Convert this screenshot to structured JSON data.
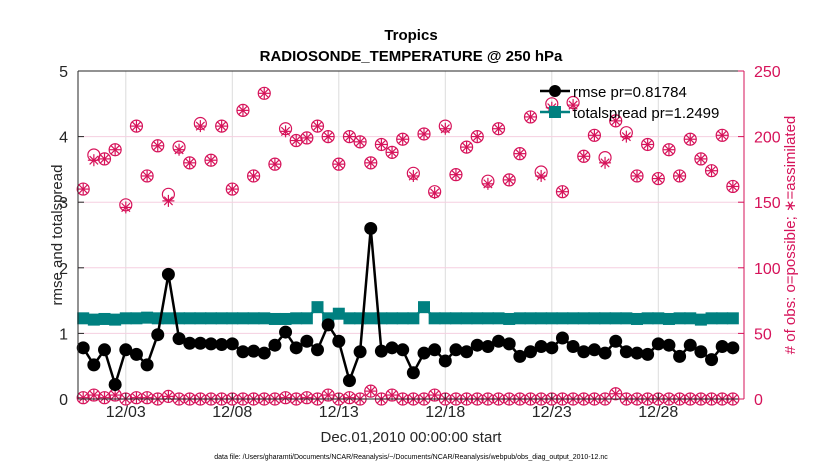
{
  "chart_data": {
    "type": "line",
    "title": "Tropics",
    "subtitle": "RADIOSONDE_TEMPERATURE @ 250 hPa",
    "xlabel": "Dec.01,2010 00:00:00 start",
    "ylabel": "rmse and totalspread",
    "ylabel_right": "# of obs: o=possible; ∗=assimilated",
    "footer": "data file: /Users/gharamti/Documents/NCAR/Reanalysis/~/Documents/NCAR/Reanalysis/webpub/obs_diag_output_2010-12.nc",
    "xlim_days": [
      0,
      31.1
    ],
    "ylim": [
      0,
      5
    ],
    "ylim_right": [
      0,
      250
    ],
    "grid": true,
    "legend_position": "top-right",
    "x_ticks": [
      {
        "day": 2.0,
        "label": "12/03"
      },
      {
        "day": 7.0,
        "label": "12/08"
      },
      {
        "day": 12.0,
        "label": "12/13"
      },
      {
        "day": 17.0,
        "label": "12/18"
      },
      {
        "day": 22.0,
        "label": "12/23"
      },
      {
        "day": 27.0,
        "label": "12/28"
      }
    ],
    "y_ticks": [
      "0",
      "1",
      "2",
      "3",
      "4",
      "5"
    ],
    "y_ticks_right": [
      "0",
      "50",
      "100",
      "150",
      "200",
      "250"
    ],
    "colors": {
      "rmse": "#000000",
      "totalspread": "#008080",
      "obs": "#d6135a",
      "grid": "#dcdcdc",
      "right_grid": "#f5cfe0"
    },
    "x_days": [
      0.0,
      0.5,
      1.0,
      1.5,
      2.0,
      2.5,
      3.0,
      3.5,
      4.0,
      4.5,
      5.0,
      5.5,
      6.0,
      6.5,
      7.0,
      7.5,
      8.0,
      8.5,
      9.0,
      9.5,
      10.0,
      10.5,
      11.0,
      11.5,
      12.0,
      12.5,
      13.0,
      13.5,
      14.0,
      14.5,
      15.0,
      15.5,
      16.0,
      16.5,
      17.0,
      17.5,
      18.0,
      18.5,
      19.0,
      19.5,
      20.0,
      20.5,
      21.0,
      21.5,
      22.0,
      22.5,
      23.0,
      23.5,
      24.0,
      24.5,
      25.0,
      25.5,
      26.0,
      26.5,
      27.0,
      27.5,
      28.0,
      28.5,
      29.0,
      29.5,
      30.0,
      30.5
    ],
    "series": [
      {
        "name": "rmse pr=0.81784",
        "key": "rmse",
        "axis": "left",
        "marker": "filled-circle",
        "values": [
          0.78,
          0.52,
          0.75,
          0.22,
          0.75,
          0.68,
          0.52,
          0.98,
          1.9,
          0.92,
          0.85,
          0.85,
          0.84,
          0.83,
          0.84,
          0.72,
          0.73,
          0.7,
          0.82,
          1.02,
          0.78,
          0.88,
          0.75,
          1.13,
          0.88,
          0.28,
          0.72,
          2.6,
          0.73,
          0.78,
          0.75,
          0.4,
          0.7,
          0.75,
          0.58,
          0.75,
          0.72,
          0.82,
          0.8,
          0.88,
          0.84,
          0.65,
          0.72,
          0.8,
          0.78,
          0.93,
          0.8,
          0.72,
          0.75,
          0.7,
          0.88,
          0.72,
          0.7,
          0.68,
          0.84,
          0.82,
          0.65,
          0.82,
          0.72,
          0.6,
          0.8,
          0.78
        ]
      },
      {
        "name": "totalspread pr=1.2499",
        "key": "totalspread",
        "axis": "left",
        "marker": "filled-square",
        "values": [
          1.23,
          1.21,
          1.22,
          1.21,
          1.23,
          1.23,
          1.24,
          1.23,
          1.23,
          1.23,
          1.23,
          1.23,
          1.23,
          1.23,
          1.23,
          1.23,
          1.23,
          1.23,
          1.22,
          1.22,
          1.23,
          1.23,
          1.4,
          1.23,
          1.3,
          1.23,
          1.23,
          1.23,
          1.23,
          1.23,
          1.23,
          1.23,
          1.4,
          1.23,
          1.23,
          1.23,
          1.23,
          1.23,
          1.23,
          1.23,
          1.22,
          1.23,
          1.23,
          1.23,
          1.23,
          1.23,
          1.23,
          1.23,
          1.23,
          1.23,
          1.23,
          1.23,
          1.22,
          1.23,
          1.23,
          1.22,
          1.23,
          1.23,
          1.21,
          1.23,
          1.23,
          1.23
        ]
      },
      {
        "name": "obs possible",
        "key": "possible",
        "axis": "right",
        "marker": "open-circle",
        "values": [
          160,
          186,
          183,
          190,
          148,
          208,
          170,
          193,
          156,
          192,
          180,
          210,
          182,
          208,
          160,
          220,
          170,
          233,
          179,
          206,
          197,
          199,
          208,
          200,
          179,
          200,
          196,
          180,
          194,
          188,
          198,
          172,
          202,
          158,
          208,
          171,
          192,
          200,
          166,
          206,
          167,
          187,
          215,
          173,
          225,
          158,
          226,
          185,
          201,
          184,
          212,
          203,
          170,
          194,
          168,
          190,
          170,
          198,
          183,
          174,
          201,
          162
        ]
      },
      {
        "name": "obs assimilated",
        "key": "assimilated",
        "axis": "right",
        "marker": "asterisk",
        "values": [
          160,
          182,
          183,
          190,
          146,
          208,
          170,
          193,
          151,
          190,
          180,
          208,
          182,
          208,
          160,
          220,
          170,
          233,
          179,
          204,
          197,
          199,
          208,
          200,
          179,
          200,
          196,
          180,
          194,
          188,
          198,
          170,
          202,
          157,
          206,
          171,
          192,
          200,
          164,
          206,
          167,
          187,
          215,
          170,
          222,
          158,
          224,
          185,
          201,
          180,
          212,
          200,
          170,
          194,
          168,
          190,
          170,
          198,
          183,
          174,
          201,
          162
        ]
      },
      {
        "name": "obs possible (bottom)",
        "key": "bottom_possible",
        "axis": "right",
        "marker": "open-circle",
        "values": [
          1,
          3,
          1,
          3,
          0,
          1,
          1,
          0,
          2,
          0,
          0,
          0,
          0,
          0,
          0,
          0,
          0,
          0,
          0,
          1,
          0,
          1,
          0,
          3,
          0,
          1,
          0,
          6,
          0,
          3,
          0,
          0,
          0,
          3,
          0,
          0,
          0,
          0,
          0,
          0,
          0,
          0,
          0,
          0,
          0,
          0,
          0,
          0,
          0,
          0,
          4,
          0,
          0,
          0,
          0,
          0,
          0,
          0,
          0,
          0,
          0,
          0
        ]
      }
    ],
    "legend": [
      {
        "label": "rmse pr=0.81784",
        "key": "rmse"
      },
      {
        "label": "totalspread pr=1.2499",
        "key": "totalspread"
      }
    ]
  }
}
